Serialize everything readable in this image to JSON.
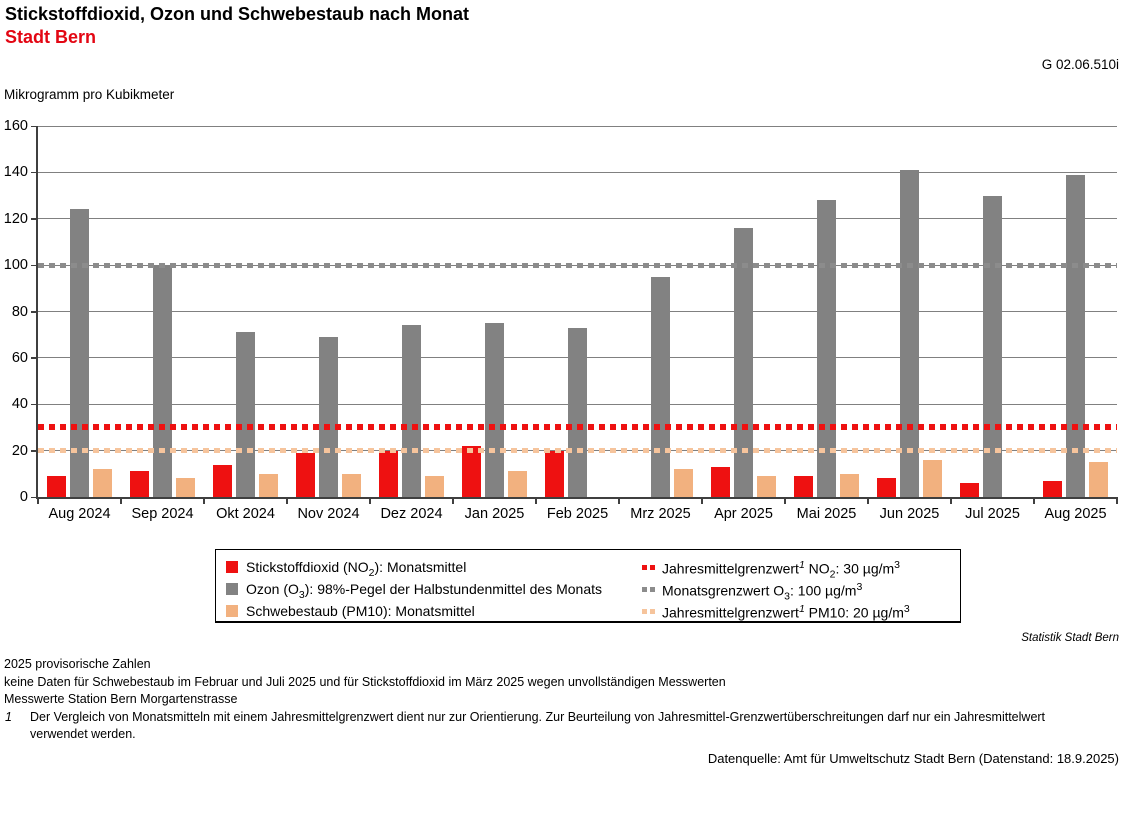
{
  "header": {
    "title": "Stickstoffdioxid, Ozon und Schwebestaub nach Monat",
    "subtitle": "Stadt Bern",
    "graph_id": "G 02.06.510i",
    "unit_label": "Mikrogramm pro Kubikmeter"
  },
  "colors": {
    "no2": "#ee1111",
    "o3": "#828282",
    "pm10": "#f2b17f",
    "no2_limit": "#ee1111",
    "o3_limit": "#8c8c8c",
    "pm10_limit": "#f6c49c",
    "subtitle_red": "#e30613",
    "grid": "#808080",
    "axis": "#3f3f3f"
  },
  "chart_data": {
    "type": "bar",
    "title": "Stickstoffdioxid, Ozon und Schwebestaub nach Monat — Stadt Bern",
    "xlabel": "",
    "ylabel": "Mikrogramm pro Kubikmeter",
    "ylim": [
      0,
      160
    ],
    "yticks": [
      0,
      20,
      40,
      60,
      80,
      100,
      120,
      140,
      160
    ],
    "grid": "horizontal",
    "legend_position": "bottom",
    "categories": [
      "Aug 2024",
      "Sep 2024",
      "Okt 2024",
      "Nov 2024",
      "Dez 2024",
      "Jan 2025",
      "Feb 2025",
      "Mrz 2025",
      "Apr 2025",
      "Mai 2025",
      "Jun 2025",
      "Jul 2025",
      "Aug 2025"
    ],
    "series": [
      {
        "id": "no2",
        "name": "Stickstoffdioxid (NO2): Monatsmittel",
        "values": [
          9,
          11,
          14,
          19,
          20,
          22,
          20,
          null,
          13,
          9,
          8,
          6,
          7
        ],
        "label_segments": [
          [
            "t",
            "Stickstoffdioxid (NO"
          ],
          [
            "sub",
            "2"
          ],
          [
            "t",
            "): Monatsmittel"
          ]
        ]
      },
      {
        "id": "o3",
        "name": "Ozon (O3): 98%-Pegel der Halbstundenmittel des Monats",
        "values": [
          124,
          100,
          71,
          69,
          74,
          75,
          73,
          95,
          116,
          128,
          141,
          130,
          139
        ],
        "label_segments": [
          [
            "t",
            "Ozon (O"
          ],
          [
            "sub",
            "3"
          ],
          [
            "t",
            "): 98%-Pegel der Halbstundenmittel des Monats"
          ]
        ]
      },
      {
        "id": "pm10",
        "name": "Schwebestaub (PM10): Monatsmittel",
        "values": [
          12,
          8,
          10,
          10,
          9,
          11,
          null,
          12,
          9,
          10,
          16,
          null,
          15
        ],
        "label_segments": [
          [
            "t",
            "Schwebestaub (PM10): Monatsmittel"
          ]
        ]
      }
    ],
    "reference_lines": [
      {
        "id": "no2_limit",
        "name": "Jahresmittelgrenzwert(1) NO2: 30 µg/m3",
        "value": 30,
        "label_segments": [
          [
            "t",
            "Jahresmittelgrenzwert"
          ],
          [
            "sup",
            "1"
          ],
          [
            "t",
            " NO"
          ],
          [
            "sub",
            "2"
          ],
          [
            "t",
            ": 30 µg/m"
          ],
          [
            "sup",
            "3"
          ]
        ]
      },
      {
        "id": "o3_limit",
        "name": "Monatsgrenzwert O3: 100 µg/m3",
        "value": 100,
        "label_segments": [
          [
            "t",
            "Monatsgrenzwert O"
          ],
          [
            "sub",
            "3"
          ],
          [
            "t",
            ": 100 µg/m"
          ],
          [
            "sup",
            "3"
          ]
        ]
      },
      {
        "id": "pm10_limit",
        "name": "Jahresmittelgrenzwert(1) PM10: 20 µg/m3",
        "value": 20,
        "label_segments": [
          [
            "t",
            "Jahresmittelgrenzwert"
          ],
          [
            "sup",
            "1"
          ],
          [
            "t",
            " PM10: 20 µg/m"
          ],
          [
            "sup",
            "3"
          ]
        ]
      }
    ]
  },
  "notes": {
    "brand": "Statistik Stadt Bern",
    "lines": [
      "2025 provisorische Zahlen",
      "keine Daten für Schwebestaub im Februar und Juli 2025 und für Stickstoffdioxid im März 2025 wegen unvollständigen Messwerten",
      "Messwerte Station Bern Morgartenstrasse"
    ],
    "footnote": {
      "marker": "1",
      "text_lines": [
        "Der Vergleich von Monatsmitteln mit einem Jahresmittelgrenzwert dient nur zur Orientierung. Zur Beurteilung von Jahresmittel-Grenzwertüberschreitungen darf nur ein Jahresmittelwert",
        "verwendet werden."
      ]
    },
    "source": "Datenquelle: Amt für Umweltschutz Stadt Bern (Datenstand: 18.9.2025)"
  }
}
